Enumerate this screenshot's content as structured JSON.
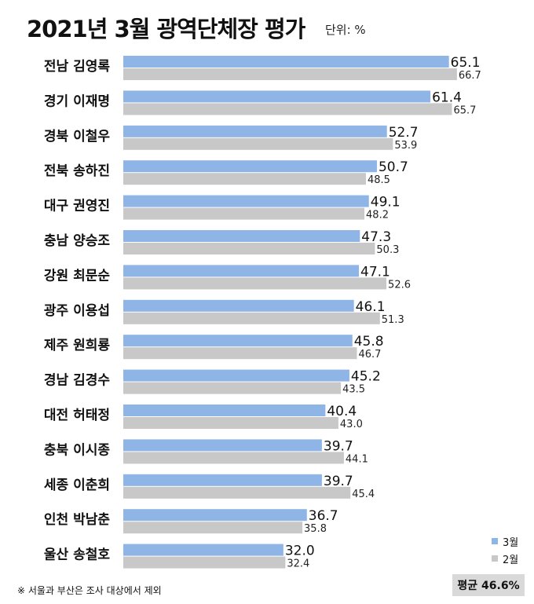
{
  "header": {
    "title": "2021년 3월 광역단체장 평가",
    "unit": "단위: %"
  },
  "legend": {
    "current": "3월",
    "previous": "2월"
  },
  "average_label": "평균 46.6%",
  "footnote": "※ 서울과 부산은 조사 대상에서 제외",
  "colors": {
    "current": "#8fb4e6",
    "previous": "#c8c8c8"
  },
  "chart_data": {
    "type": "bar",
    "orientation": "horizontal",
    "title": "2021년 3월 광역단체장 평가",
    "unit": "단위: %",
    "categories": [
      "전남 김영록",
      "경기 이재명",
      "경북 이철우",
      "전북 송하진",
      "대구 권영진",
      "충남 양승조",
      "강원 최문순",
      "광주 이용섭",
      "제주 원희룡",
      "경남 김경수",
      "대전 허태정",
      "충북 이시종",
      "세종 이춘희",
      "인천 박남춘",
      "울산 송철호"
    ],
    "series": [
      {
        "name": "3월",
        "values_text": [
          "65.1",
          "61.4",
          "52.7",
          "50.7",
          "49.1",
          "47.3",
          "47.1",
          "46.1",
          "45.8",
          "45.2",
          "40.4",
          "39.7",
          "39.7",
          "36.7",
          "32.0"
        ]
      },
      {
        "name": "2월",
        "values_text": [
          "66.7",
          "65.7",
          "53.9",
          "48.5",
          "48.2",
          "50.3",
          "52.6",
          "51.3",
          "46.7",
          "43.5",
          "43.0",
          "44.1",
          "45.4",
          "35.8",
          "32.4"
        ]
      }
    ],
    "xlim": [
      0,
      70
    ],
    "grid": false,
    "legend_position": "bottom-right"
  }
}
